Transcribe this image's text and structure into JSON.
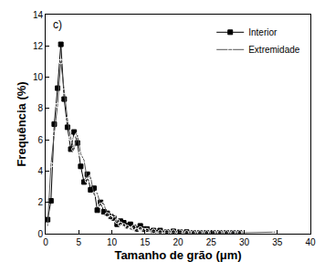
{
  "chart_data": {
    "type": "line",
    "annotations": [
      "c)"
    ],
    "x_label": "Tamanho de grão (μm)",
    "y_label": "Frequência (%)",
    "xlim": [
      0,
      40
    ],
    "xticks": [
      0,
      5,
      10,
      15,
      20,
      25,
      30,
      35,
      40
    ],
    "ylim": [
      0,
      14
    ],
    "yticks": [
      0,
      2,
      4,
      6,
      8,
      10,
      12,
      14
    ],
    "grid": false,
    "legend": "upper right",
    "series": [
      {
        "name": "Interior",
        "color": "#000000",
        "marker": "square",
        "line_style": "solid",
        "x": [
          0.3,
          0.8,
          1.3,
          1.8,
          2.3,
          2.8,
          3.3,
          3.8,
          4.3,
          4.8,
          5.3,
          5.8,
          6.3,
          6.8,
          7.3,
          7.8,
          8.3,
          8.8,
          9.3,
          9.8,
          10.3,
          10.8,
          11.3,
          11.8,
          12.3,
          12.8,
          13.3,
          13.8,
          14.3,
          14.8,
          15.3,
          16.3,
          17.3,
          18.3,
          19.3,
          20.3,
          21.3,
          22.3,
          23.3,
          24.3,
          25.3,
          26.3,
          27.3,
          28.3,
          29.3
        ],
        "values": [
          0.9,
          2.1,
          7.0,
          9.3,
          12.1,
          8.6,
          6.8,
          5.4,
          6.5,
          5.8,
          4.3,
          3.3,
          3.8,
          2.8,
          2.9,
          1.5,
          2.0,
          1.4,
          1.3,
          1.1,
          1.0,
          0.6,
          0.8,
          0.7,
          0.5,
          0.6,
          0.4,
          0.3,
          0.5,
          0.3,
          0.3,
          0.2,
          0.2,
          0.1,
          0.15,
          0.1,
          0.1,
          0.05,
          0.05,
          0.05,
          0.05,
          0.05,
          0.05,
          0.05,
          0.05
        ]
      },
      {
        "name": "Extremidade",
        "color": "#555555",
        "marker": "circle-open",
        "line_style": "solid",
        "x": [
          0.3,
          0.8,
          1.3,
          1.8,
          2.3,
          2.8,
          3.3,
          3.8,
          4.3,
          4.8,
          5.3,
          5.8,
          6.3,
          6.8,
          7.3,
          7.8,
          8.3,
          8.8,
          9.3,
          9.8,
          10.3,
          10.8,
          11.3,
          11.8,
          12.3,
          12.8,
          13.3,
          13.8,
          14.3,
          14.8,
          15.3,
          16.3,
          17.3,
          18.3,
          19.3,
          20.3,
          21.3,
          22.3,
          23.3,
          24.3,
          25.3,
          26.3,
          27.3,
          28.3,
          29.3,
          34.7
        ],
        "values": [
          0.5,
          4.4,
          6.4,
          8.2,
          11.0,
          9.1,
          7.3,
          6.1,
          5.4,
          6.3,
          5.1,
          4.7,
          3.4,
          3.6,
          2.5,
          2.6,
          1.8,
          1.9,
          1.2,
          1.0,
          1.2,
          0.8,
          0.6,
          0.5,
          0.4,
          0.3,
          0.4,
          0.2,
          0.3,
          0.2,
          0.2,
          0.15,
          0.1,
          0.1,
          0.1,
          0.1,
          0.05,
          0.05,
          0.05,
          0.05,
          0.05,
          0.05,
          0.05,
          0.05,
          0.05,
          0.1
        ]
      }
    ]
  }
}
